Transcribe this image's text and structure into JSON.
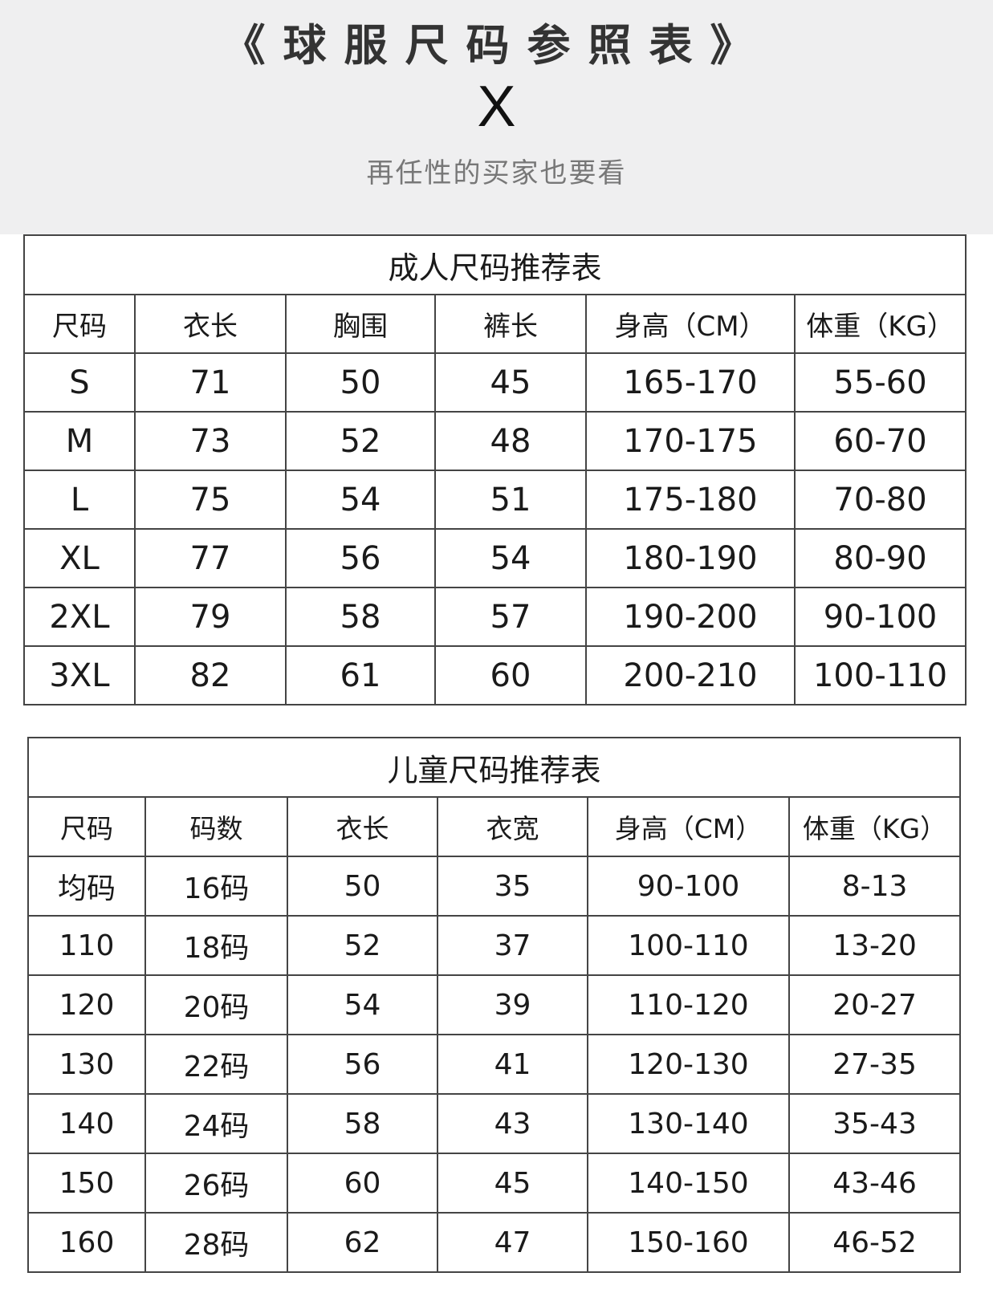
{
  "header": {
    "title": "《球服尺码参照表》",
    "mark": "X",
    "subtitle": "再任性的买家也要看"
  },
  "adult": {
    "caption": "成人尺码推荐表",
    "columns": [
      "尺码",
      "衣长",
      "胸围",
      "裤长",
      "身高（CM）",
      "体重（KG）"
    ],
    "rows": [
      [
        "S",
        "71",
        "50",
        "45",
        "165-170",
        "55-60"
      ],
      [
        "M",
        "73",
        "52",
        "48",
        "170-175",
        "60-70"
      ],
      [
        "L",
        "75",
        "54",
        "51",
        "175-180",
        "70-80"
      ],
      [
        "XL",
        "77",
        "56",
        "54",
        "180-190",
        "80-90"
      ],
      [
        "2XL",
        "79",
        "58",
        "57",
        "190-200",
        "90-100"
      ],
      [
        "3XL",
        "82",
        "61",
        "60",
        "200-210",
        "100-110"
      ]
    ]
  },
  "child": {
    "caption": "儿童尺码推荐表",
    "columns": [
      "尺码",
      "码数",
      "衣长",
      "衣宽",
      "身高（CM）",
      "体重（KG）"
    ],
    "rows": [
      [
        "均码",
        "16码",
        "50",
        "35",
        "90-100",
        "8-13"
      ],
      [
        "110",
        "18码",
        "52",
        "37",
        "100-110",
        "13-20"
      ],
      [
        "120",
        "20码",
        "54",
        "39",
        "110-120",
        "20-27"
      ],
      [
        "130",
        "22码",
        "56",
        "41",
        "120-130",
        "27-35"
      ],
      [
        "140",
        "24码",
        "58",
        "43",
        "130-140",
        "35-43"
      ],
      [
        "150",
        "26码",
        "60",
        "45",
        "140-150",
        "43-46"
      ],
      [
        "160",
        "28码",
        "62",
        "47",
        "150-160",
        "46-52"
      ]
    ]
  }
}
